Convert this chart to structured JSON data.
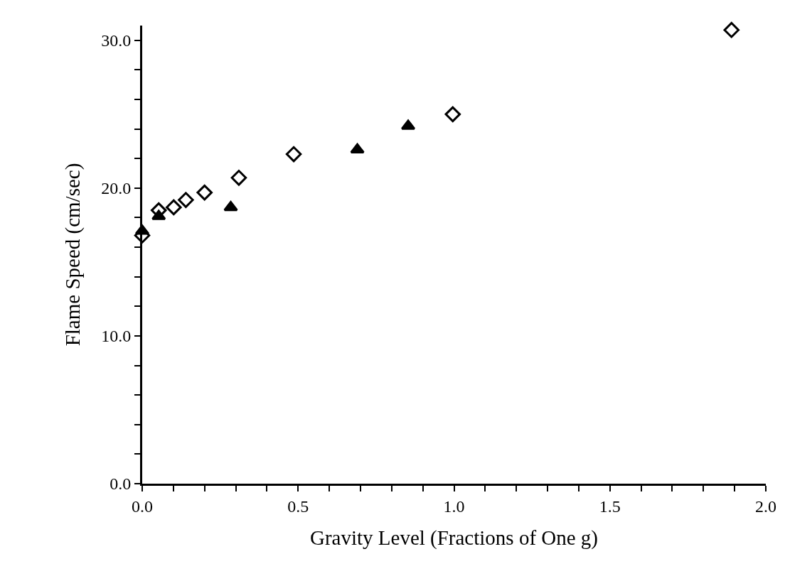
{
  "chart_data": {
    "type": "scatter",
    "xlabel": "Gravity Level (Fractions of One g)",
    "ylabel": "Flame Speed (cm/sec)",
    "xlim": [
      0,
      2.0
    ],
    "ylim": [
      0,
      31
    ],
    "xticks": [
      {
        "value": 0,
        "label": "0.0"
      },
      {
        "value": 0.1,
        "label": null
      },
      {
        "value": 0.2,
        "label": null
      },
      {
        "value": 0.3,
        "label": null
      },
      {
        "value": 0.4,
        "label": null
      },
      {
        "value": 0.5,
        "label": "0.5"
      },
      {
        "value": 0.6,
        "label": null
      },
      {
        "value": 0.7,
        "label": null
      },
      {
        "value": 0.8,
        "label": null
      },
      {
        "value": 0.9,
        "label": null
      },
      {
        "value": 1.0,
        "label": "1.0"
      },
      {
        "value": 1.1,
        "label": null
      },
      {
        "value": 1.2,
        "label": null
      },
      {
        "value": 1.3,
        "label": null
      },
      {
        "value": 1.4,
        "label": null
      },
      {
        "value": 1.5,
        "label": "1.5"
      },
      {
        "value": 1.6,
        "label": null
      },
      {
        "value": 1.7,
        "label": null
      },
      {
        "value": 1.8,
        "label": null
      },
      {
        "value": 1.9,
        "label": null
      },
      {
        "value": 2.0,
        "label": "2.0"
      }
    ],
    "yticks": [
      {
        "value": 0,
        "label": "0.0"
      },
      {
        "value": 2,
        "label": null
      },
      {
        "value": 4,
        "label": null
      },
      {
        "value": 6,
        "label": null
      },
      {
        "value": 8,
        "label": null
      },
      {
        "value": 10,
        "label": "10.0"
      },
      {
        "value": 12,
        "label": null
      },
      {
        "value": 14,
        "label": null
      },
      {
        "value": 16,
        "label": null
      },
      {
        "value": 18,
        "label": null
      },
      {
        "value": 20,
        "label": "20.0"
      },
      {
        "value": 22,
        "label": null
      },
      {
        "value": 24,
        "label": null
      },
      {
        "value": 26,
        "label": null
      },
      {
        "value": 28,
        "label": null
      },
      {
        "value": 30,
        "label": "30.0"
      }
    ],
    "series": [
      {
        "color": "#000000",
        "marker": "diamond",
        "x": [
          0,
          0.053,
          0.101,
          0.14,
          0.2,
          0.31,
          0.486,
          0.996,
          1.89
        ],
        "values": [
          16.8,
          18.5,
          18.7,
          19.2,
          19.7,
          20.7,
          22.3,
          25.0,
          30.7
        ]
      },
      {
        "color": "#000000",
        "marker": "triangle",
        "x": [
          0,
          0.053,
          0.284,
          0.69,
          0.853
        ],
        "values": [
          17.1,
          18.1,
          18.7,
          22.6,
          24.2
        ]
      }
    ]
  }
}
